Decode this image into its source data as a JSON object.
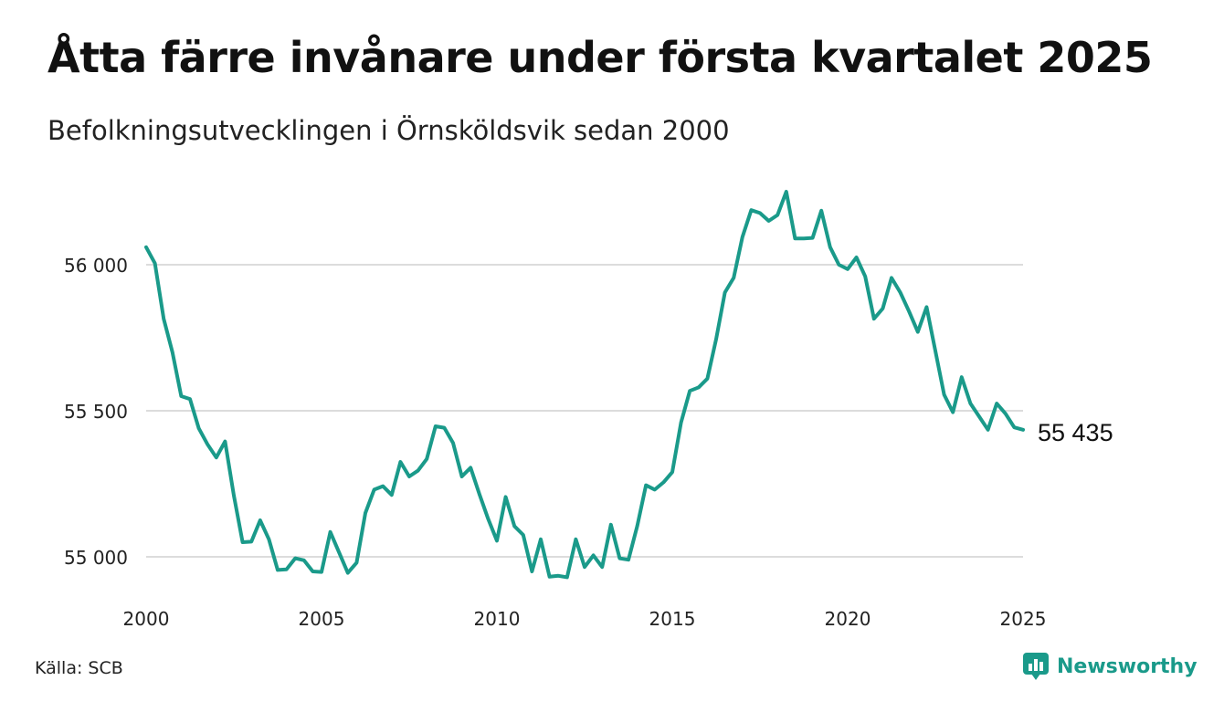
{
  "title": "Åtta färre invånare under första kvartalet 2025",
  "subtitle": "Befolkningsutvecklingen i Örnsköldsvik sedan 2000",
  "source": "Källa: SCB",
  "brand": {
    "name": "Newsworthy",
    "icon": "newsworthy-logo-icon",
    "color": "#1a9a8a"
  },
  "chart_data": {
    "type": "line",
    "title": "Åtta färre invånare under första kvartalet 2025",
    "subtitle": "Befolkningsutvecklingen i Örnsköldsvik sedan 2000",
    "xlabel": "",
    "ylabel": "",
    "xlim": [
      2000,
      2025
    ],
    "ylim": [
      54930,
      56300
    ],
    "x_ticks": [
      2000,
      2005,
      2010,
      2015,
      2020,
      2025
    ],
    "x_tick_labels": [
      "2000",
      "2005",
      "2010",
      "2015",
      "2020",
      "2025"
    ],
    "y_ticks": [
      55000,
      55500,
      56000
    ],
    "y_tick_labels": [
      "55 000",
      "55 500",
      "56 000"
    ],
    "grid": "horizontal",
    "line_color": "#1a9a8a",
    "end_label": "55 435",
    "series": [
      {
        "x": [
          2000.0,
          2000.25,
          2000.5,
          2000.75,
          2001.0,
          2001.25,
          2001.5,
          2001.75,
          2002.0,
          2002.25,
          2002.5,
          2002.75,
          2003.0,
          2003.25,
          2003.5,
          2003.75,
          2004.0,
          2004.25,
          2004.5,
          2004.75,
          2005.0,
          2005.25,
          2005.5,
          2005.75,
          2006.0,
          2006.25,
          2006.5,
          2006.75,
          2007.0,
          2007.25,
          2007.5,
          2007.75,
          2008.0,
          2008.25,
          2008.5,
          2008.75,
          2009.0,
          2009.25,
          2009.5,
          2009.75,
          2010.0,
          2010.25,
          2010.5,
          2010.75,
          2011.0,
          2011.25,
          2011.5,
          2011.75,
          2012.0,
          2012.25,
          2012.5,
          2012.75,
          2013.0,
          2013.25,
          2013.5,
          2013.75,
          2014.0,
          2014.25,
          2014.5,
          2014.75,
          2015.0,
          2015.25,
          2015.5,
          2015.75,
          2016.0,
          2016.25,
          2016.5,
          2016.75,
          2017.0,
          2017.25,
          2017.5,
          2017.75,
          2018.0,
          2018.25,
          2018.5,
          2018.75,
          2019.0,
          2019.25,
          2019.5,
          2019.75,
          2020.0,
          2020.25,
          2020.5,
          2020.75,
          2021.0,
          2021.25,
          2021.5,
          2021.75,
          2022.0,
          2022.25,
          2022.5,
          2022.75,
          2023.0,
          2023.25,
          2023.5,
          2023.75,
          2024.0,
          2024.25,
          2024.5,
          2024.75,
          2025.0
        ],
        "values": [
          56060,
          56005,
          55815,
          55700,
          55550,
          55540,
          55440,
          55385,
          55340,
          55395,
          55210,
          55050,
          55052,
          55125,
          55060,
          54955,
          54957,
          54995,
          54988,
          54950,
          54948,
          55085,
          55015,
          54945,
          54980,
          55150,
          55230,
          55242,
          55212,
          55325,
          55275,
          55295,
          55335,
          55447,
          55442,
          55390,
          55275,
          55305,
          55215,
          55130,
          55055,
          55205,
          55105,
          55075,
          54950,
          55060,
          54932,
          54935,
          54930,
          55060,
          54965,
          55005,
          54965,
          55110,
          54995,
          54990,
          55105,
          55245,
          55230,
          55255,
          55290,
          55460,
          55568,
          55580,
          55610,
          55745,
          55905,
          55955,
          56095,
          56187,
          56177,
          56150,
          56170,
          56250,
          56090,
          56090,
          56092,
          56185,
          56060,
          56000,
          55985,
          56025,
          55960,
          55815,
          55850,
          55955,
          55905,
          55840,
          55770,
          55855,
          55705,
          55555,
          55495,
          55615,
          55525,
          55480,
          55435,
          55525,
          55490,
          55443,
          55435
        ]
      }
    ]
  }
}
